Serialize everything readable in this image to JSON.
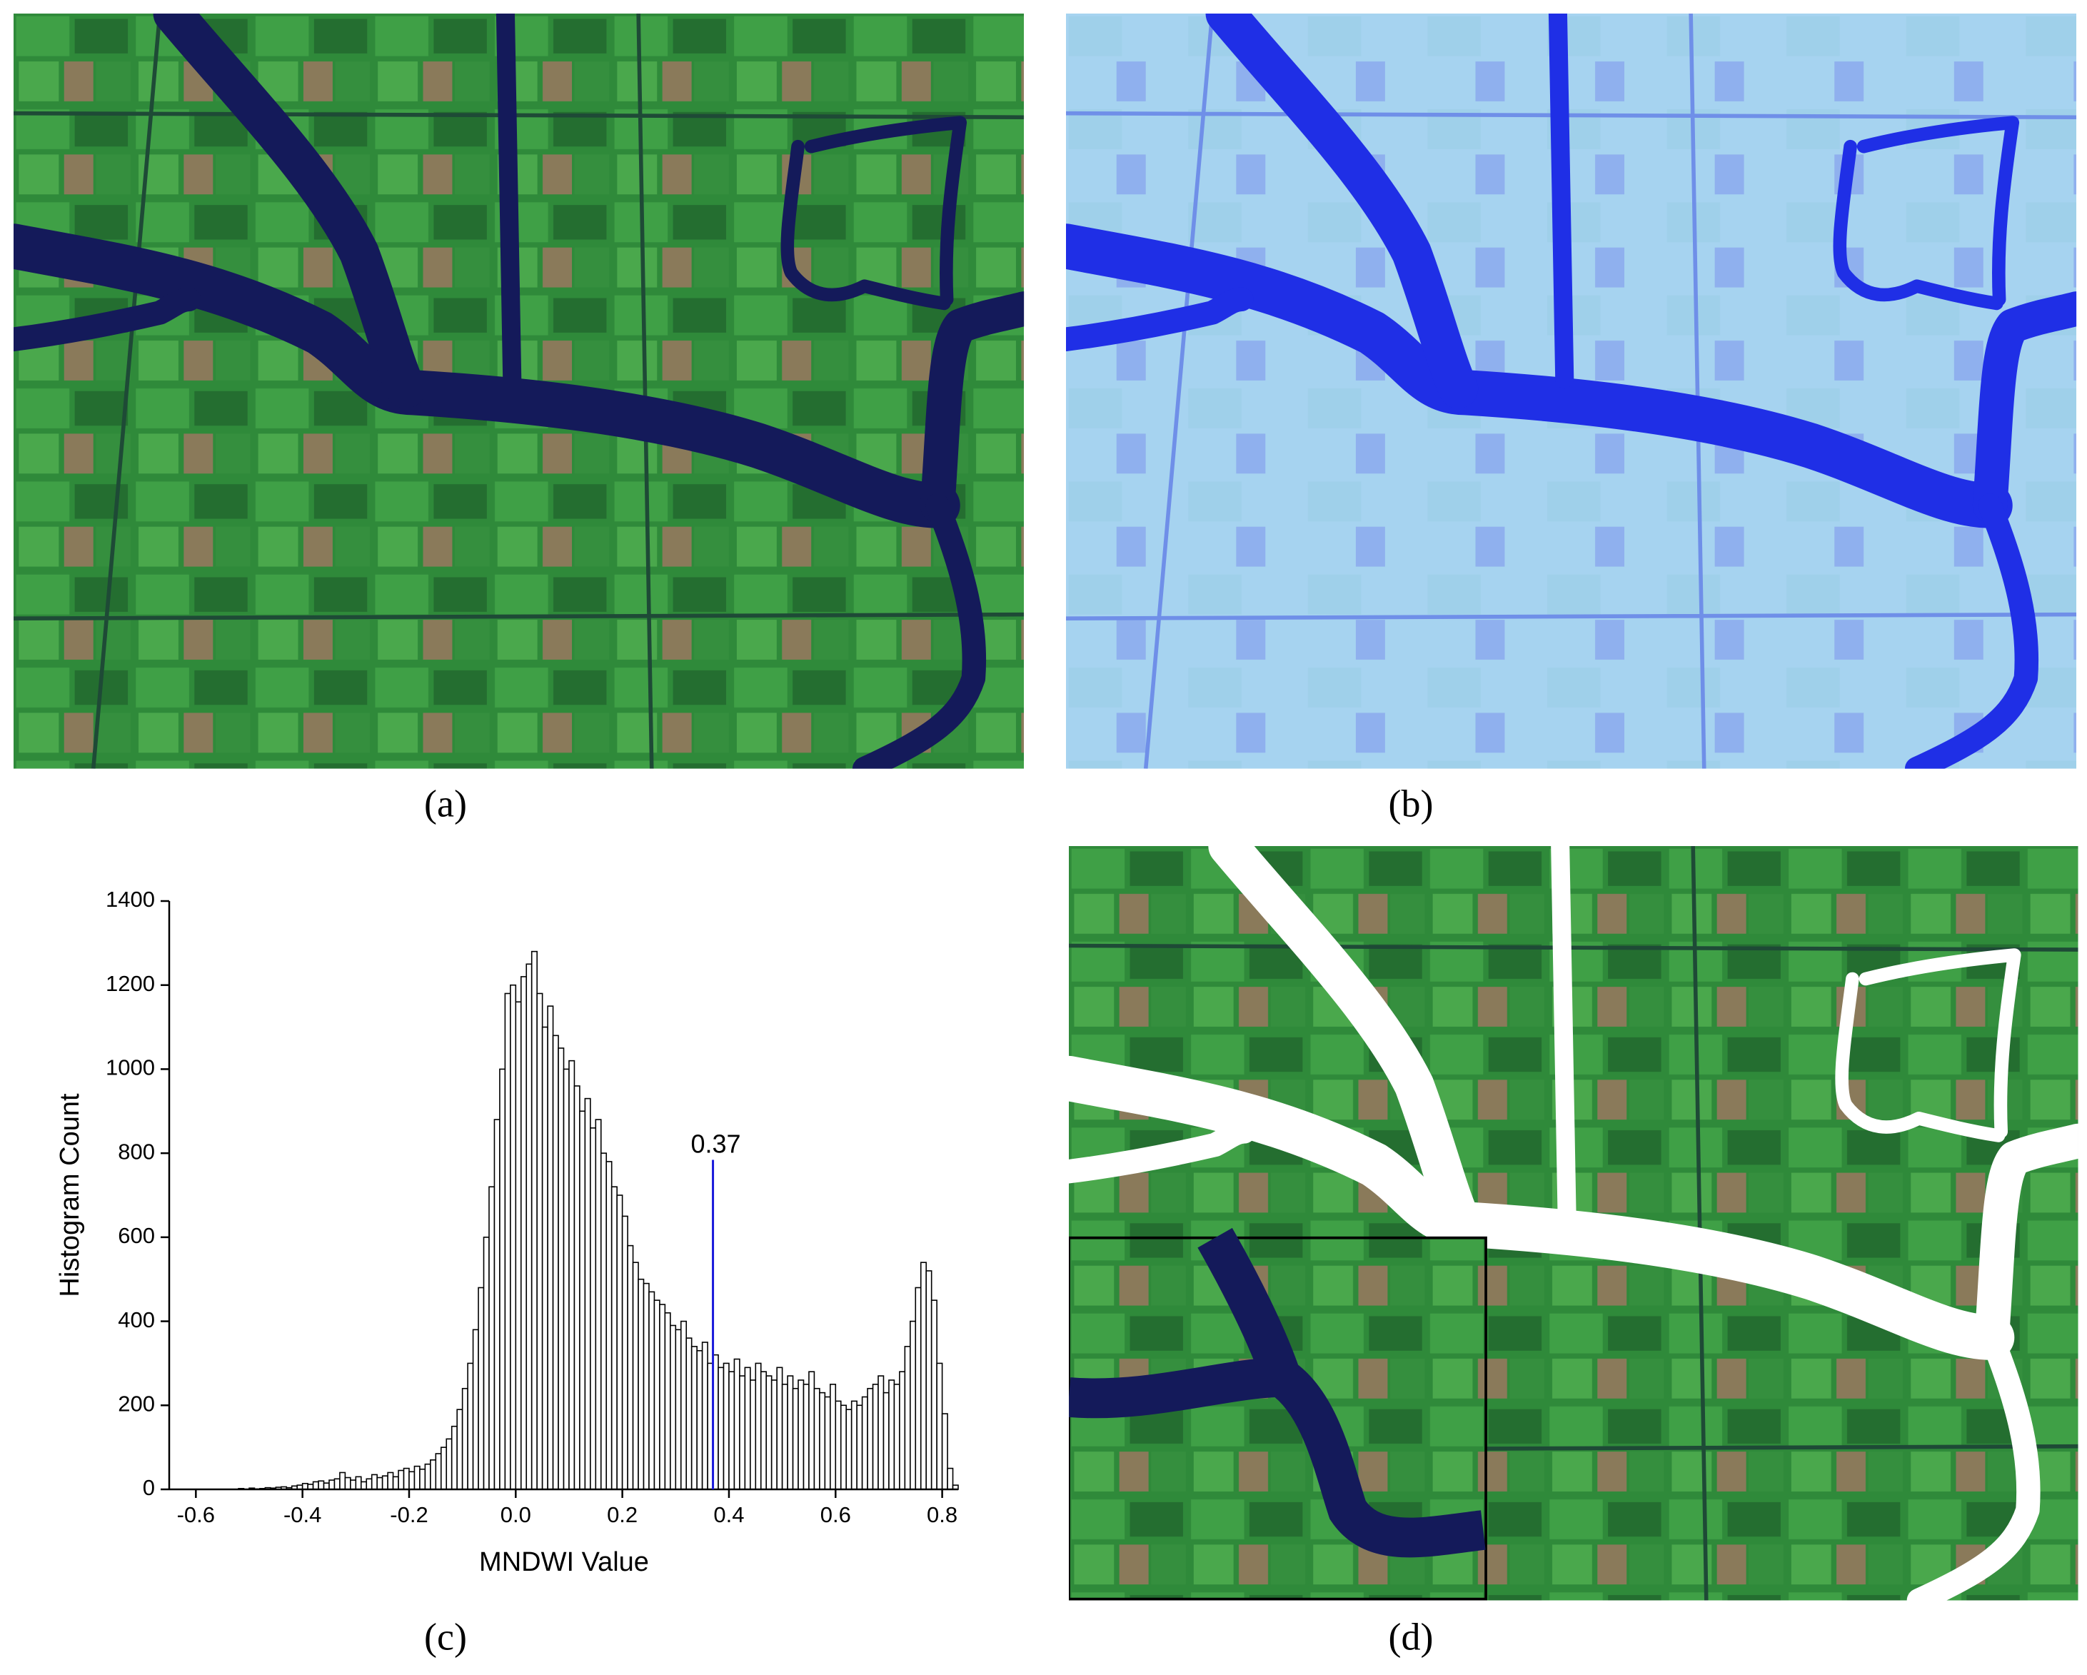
{
  "panels": [
    {
      "label": "(a)"
    },
    {
      "label": "(b)"
    },
    {
      "label": "(c)"
    },
    {
      "label": "(d)"
    }
  ],
  "chart_data": {
    "type": "histogram",
    "xlabel": "MNDWI Value",
    "ylabel": "Histogram Count",
    "bins": [
      -0.52,
      -0.51,
      -0.5,
      -0.49,
      -0.48,
      -0.47,
      -0.46,
      -0.45,
      -0.44,
      -0.43,
      -0.42,
      -0.41,
      -0.4,
      -0.39,
      -0.38,
      -0.37,
      -0.36,
      -0.35,
      -0.34,
      -0.33,
      -0.32,
      -0.31,
      -0.3,
      -0.29,
      -0.28,
      -0.27,
      -0.26,
      -0.25,
      -0.24,
      -0.23,
      -0.22,
      -0.21,
      -0.2,
      -0.19,
      -0.18,
      -0.17,
      -0.16,
      -0.15,
      -0.14,
      -0.13,
      -0.12,
      -0.11,
      -0.1,
      -0.09,
      -0.08,
      -0.07,
      -0.06,
      -0.05,
      -0.04,
      -0.03,
      -0.02,
      -0.01,
      0,
      0.01,
      0.02,
      0.03,
      0.04,
      0.05,
      0.06,
      0.07,
      0.08,
      0.09,
      0.1,
      0.11,
      0.12,
      0.13,
      0.14,
      0.15,
      0.16,
      0.17,
      0.18,
      0.19,
      0.2,
      0.21,
      0.22,
      0.23,
      0.24,
      0.25,
      0.26,
      0.27,
      0.28,
      0.29,
      0.3,
      0.31,
      0.32,
      0.33,
      0.34,
      0.35,
      0.36,
      0.37,
      0.38,
      0.39,
      0.4,
      0.41,
      0.42,
      0.43,
      0.44,
      0.45,
      0.46,
      0.47,
      0.48,
      0.49,
      0.5,
      0.51,
      0.52,
      0.53,
      0.54,
      0.55,
      0.56,
      0.57,
      0.58,
      0.59,
      0.6,
      0.61,
      0.62,
      0.63,
      0.64,
      0.65,
      0.66,
      0.67,
      0.68,
      0.69,
      0.7,
      0.71,
      0.72,
      0.73,
      0.74,
      0.75,
      0.76,
      0.77,
      0.78,
      0.79,
      0.8,
      0.81,
      0.82,
      0.83
    ],
    "values": [
      2,
      0,
      3,
      1,
      2,
      4,
      3,
      5,
      6,
      4,
      8,
      10,
      14,
      12,
      18,
      20,
      15,
      22,
      25,
      40,
      28,
      22,
      30,
      18,
      25,
      35,
      28,
      32,
      40,
      30,
      45,
      50,
      42,
      55,
      48,
      60,
      70,
      85,
      100,
      120,
      150,
      190,
      240,
      300,
      380,
      480,
      600,
      720,
      880,
      1000,
      1180,
      1200,
      1160,
      1220,
      1250,
      1280,
      1180,
      1100,
      1150,
      1080,
      1050,
      1000,
      1020,
      960,
      900,
      930,
      860,
      880,
      800,
      780,
      720,
      700,
      650,
      580,
      540,
      500,
      490,
      470,
      450,
      440,
      420,
      390,
      380,
      400,
      360,
      340,
      330,
      350,
      300,
      320,
      290,
      300,
      280,
      310,
      270,
      290,
      260,
      300,
      280,
      270,
      260,
      290,
      250,
      270,
      240,
      260,
      250,
      280,
      240,
      230,
      220,
      250,
      210,
      200,
      190,
      210,
      200,
      220,
      240,
      250,
      270,
      230,
      260,
      250,
      280,
      340,
      400,
      480,
      540,
      520,
      450,
      300,
      180,
      50,
      10
    ],
    "color": "#ffffff",
    "edgecolor": "#000000",
    "xlim": [
      -0.65,
      0.83
    ],
    "xticks": [
      -0.6,
      -0.4,
      -0.2,
      {
        "value": 0,
        "label": "0.0"
      },
      0.2,
      0.4,
      0.6,
      0.8
    ],
    "ylim": [
      0,
      1400
    ],
    "yticks": [
      0,
      200,
      400,
      600,
      800,
      1000,
      1200,
      1400
    ],
    "annotations": [
      {
        "x": 0.37,
        "text": "0.37",
        "color": "#1a1adb"
      }
    ]
  }
}
